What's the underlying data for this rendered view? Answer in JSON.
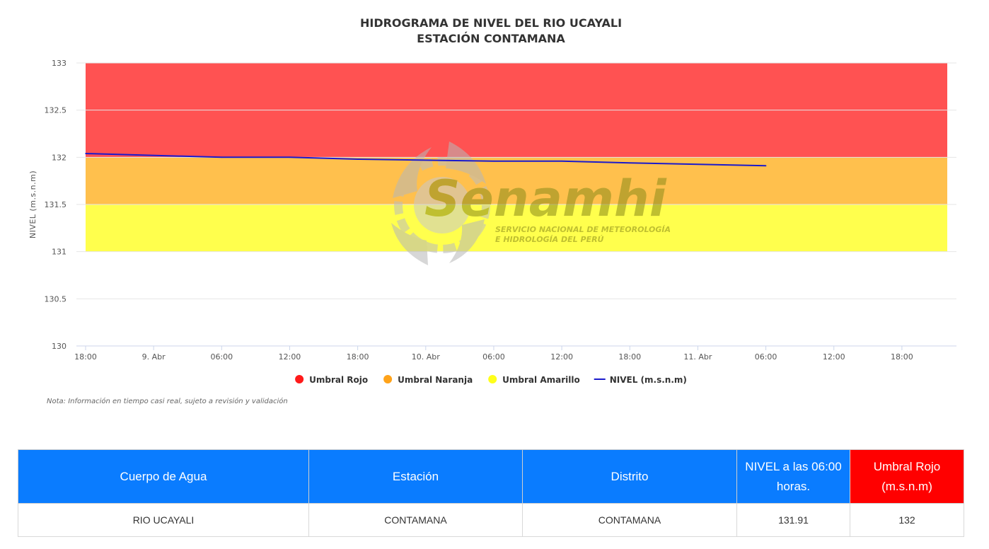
{
  "chart_data": {
    "type": "line",
    "title": [
      "HIDROGRAMA DE NIVEL DEL RIO UCAYALI",
      "ESTACIÓN CONTAMANA"
    ],
    "ylabel": "NIVEL (m.s.n.m)",
    "xlabel": "",
    "ylim": [
      130,
      133
    ],
    "yticks": [
      130,
      130.5,
      131,
      131.5,
      132,
      132.5,
      133
    ],
    "x_start": "2024-04-08T18:00",
    "x_end": "2024-04-11T22:00",
    "xtick_times": [
      "2024-04-08T18:00",
      "2024-04-09T00:00",
      "2024-04-09T06:00",
      "2024-04-09T12:00",
      "2024-04-09T18:00",
      "2024-04-10T00:00",
      "2024-04-10T06:00",
      "2024-04-10T12:00",
      "2024-04-10T18:00",
      "2024-04-11T00:00",
      "2024-04-11T06:00",
      "2024-04-11T12:00",
      "2024-04-11T18:00"
    ],
    "xtick_labels": [
      "18:00",
      "9. Abr",
      "06:00",
      "12:00",
      "18:00",
      "10. Abr",
      "06:00",
      "12:00",
      "18:00",
      "11. Abr",
      "06:00",
      "12:00",
      "18:00"
    ],
    "bands": [
      {
        "name": "Umbral Rojo",
        "from": 132,
        "to": 133,
        "color": "#ff5252"
      },
      {
        "name": "Umbral Naranja",
        "from": 131.5,
        "to": 132,
        "color": "#ffc04d"
      },
      {
        "name": "Umbral Amarillo",
        "from": 131,
        "to": 131.5,
        "color": "#ffff4d"
      }
    ],
    "series": [
      {
        "name": "NIVEL (m.s.n.m)",
        "color": "#1a1acc",
        "points": [
          {
            "x": "2024-04-08T18:00",
            "y": 132.04
          },
          {
            "x": "2024-04-09T06:00",
            "y": 132.0
          },
          {
            "x": "2024-04-09T12:00",
            "y": 132.0
          },
          {
            "x": "2024-04-09T18:00",
            "y": 131.98
          },
          {
            "x": "2024-04-10T06:00",
            "y": 131.96
          },
          {
            "x": "2024-04-10T12:00",
            "y": 131.96
          },
          {
            "x": "2024-04-10T18:00",
            "y": 131.94
          },
          {
            "x": "2024-04-11T06:00",
            "y": 131.91
          }
        ]
      }
    ],
    "legend": [
      {
        "label": "Umbral Rojo",
        "color": "#ff1a1a",
        "kind": "dot"
      },
      {
        "label": "Umbral Naranja",
        "color": "#ffa31a",
        "kind": "dot"
      },
      {
        "label": "Umbral Amarillo",
        "color": "#ffff1a",
        "kind": "dot"
      },
      {
        "label": "NIVEL (m.s.n.m)",
        "color": "#1a1acc",
        "kind": "line"
      }
    ],
    "legend_position": "bottom-center",
    "grid": true,
    "note": "Nota: Información en tiempo casi real, sujeto a revisión y validación"
  },
  "watermark": {
    "brand": "Senamhi",
    "lines": [
      "SERVICIO NACIONAL DE METEOROLOGÍA",
      "E HIDROLOGÍA DEL PERÚ"
    ]
  },
  "table": {
    "headers": [
      "Cuerpo de Agua",
      "Estación",
      "Distrito",
      "NIVEL a las 06:00 horas.",
      "Umbral Rojo (m.s.n.m)"
    ],
    "row": [
      "RIO UCAYALI",
      "CONTAMANA",
      "CONTAMANA",
      "131.91",
      "132"
    ]
  }
}
